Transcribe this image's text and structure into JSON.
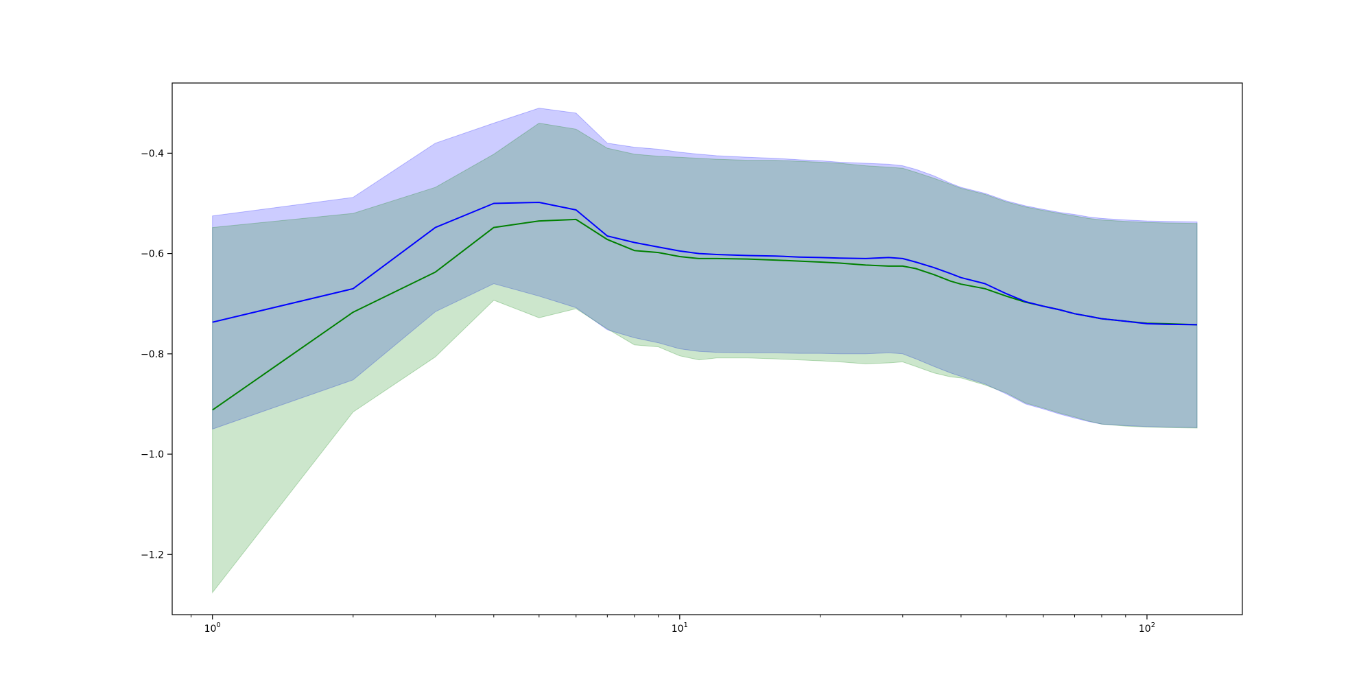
{
  "chart_data": {
    "type": "line",
    "title": "",
    "xlabel": "",
    "ylabel": "",
    "xscale": "log",
    "xlim": [
      0.82,
      160
    ],
    "ylim": [
      -1.32,
      -0.26
    ],
    "grid": false,
    "legend": "none",
    "x_ticks": [
      {
        "value": 1,
        "base": "10",
        "exp": "0"
      },
      {
        "value": 10,
        "base": "10",
        "exp": "1"
      },
      {
        "value": 100,
        "base": "10",
        "exp": "2"
      }
    ],
    "y_ticks": [
      {
        "value": -0.4,
        "label": "−0.4"
      },
      {
        "value": -0.6,
        "label": "−0.6"
      },
      {
        "value": -0.8,
        "label": "−0.8"
      },
      {
        "value": -1.0,
        "label": "−1.0"
      },
      {
        "value": -1.2,
        "label": "−1.2"
      }
    ],
    "series": [
      {
        "color": "#0000ff",
        "band_color": "#0000ff",
        "band_opacity": 0.2,
        "x": [
          1,
          2,
          3,
          4,
          5,
          6,
          7,
          8,
          9,
          10,
          11,
          12,
          14,
          16,
          18,
          20,
          22,
          25,
          28,
          30,
          32,
          35,
          38,
          40,
          45,
          50,
          55,
          60,
          65,
          70,
          75,
          80,
          90,
          100,
          110,
          128
        ],
        "y": [
          -0.737,
          -0.67,
          -0.548,
          -0.5,
          -0.498,
          -0.513,
          -0.565,
          -0.578,
          -0.587,
          -0.595,
          -0.6,
          -0.602,
          -0.604,
          -0.605,
          -0.607,
          -0.608,
          -0.609,
          -0.61,
          -0.608,
          -0.61,
          -0.617,
          -0.628,
          -0.64,
          -0.648,
          -0.66,
          -0.68,
          -0.696,
          -0.705,
          -0.712,
          -0.72,
          -0.725,
          -0.73,
          -0.735,
          -0.74,
          -0.741,
          -0.742
        ],
        "upper": [
          -0.525,
          -0.488,
          -0.38,
          -0.34,
          -0.31,
          -0.32,
          -0.38,
          -0.388,
          -0.392,
          -0.398,
          -0.402,
          -0.405,
          -0.408,
          -0.41,
          -0.413,
          -0.415,
          -0.418,
          -0.42,
          -0.422,
          -0.425,
          -0.432,
          -0.445,
          -0.46,
          -0.468,
          -0.48,
          -0.495,
          -0.505,
          -0.512,
          -0.518,
          -0.522,
          -0.527,
          -0.53,
          -0.533,
          -0.535,
          -0.536,
          -0.537
        ],
        "lower": [
          -0.95,
          -0.852,
          -0.716,
          -0.66,
          -0.685,
          -0.708,
          -0.752,
          -0.768,
          -0.778,
          -0.79,
          -0.795,
          -0.797,
          -0.798,
          -0.798,
          -0.799,
          -0.799,
          -0.8,
          -0.8,
          -0.798,
          -0.8,
          -0.81,
          -0.825,
          -0.838,
          -0.845,
          -0.86,
          -0.88,
          -0.9,
          -0.91,
          -0.92,
          -0.928,
          -0.935,
          -0.94,
          -0.943,
          -0.945,
          -0.946,
          -0.947
        ]
      },
      {
        "color": "#008000",
        "band_color": "#008000",
        "band_opacity": 0.2,
        "x": [
          1,
          2,
          3,
          4,
          5,
          6,
          7,
          8,
          9,
          10,
          11,
          12,
          14,
          16,
          18,
          20,
          22,
          25,
          28,
          30,
          32,
          35,
          38,
          40,
          45,
          50,
          55,
          60,
          65,
          70,
          75,
          80,
          90,
          100,
          110,
          128
        ],
        "y": [
          -0.912,
          -0.717,
          -0.637,
          -0.548,
          -0.535,
          -0.532,
          -0.572,
          -0.594,
          -0.598,
          -0.606,
          -0.61,
          -0.61,
          -0.611,
          -0.613,
          -0.615,
          -0.617,
          -0.619,
          -0.623,
          -0.625,
          -0.625,
          -0.63,
          -0.642,
          -0.655,
          -0.661,
          -0.67,
          -0.685,
          -0.697,
          -0.705,
          -0.712,
          -0.72,
          -0.725,
          -0.73,
          -0.735,
          -0.739,
          -0.74,
          -0.742
        ],
        "upper": [
          -0.548,
          -0.52,
          -0.468,
          -0.402,
          -0.34,
          -0.352,
          -0.39,
          -0.402,
          -0.406,
          -0.408,
          -0.41,
          -0.412,
          -0.414,
          -0.414,
          -0.416,
          -0.418,
          -0.42,
          -0.425,
          -0.428,
          -0.43,
          -0.438,
          -0.45,
          -0.462,
          -0.47,
          -0.482,
          -0.497,
          -0.507,
          -0.514,
          -0.52,
          -0.525,
          -0.53,
          -0.533,
          -0.536,
          -0.538,
          -0.539,
          -0.54
        ],
        "lower": [
          -1.276,
          -0.916,
          -0.806,
          -0.693,
          -0.728,
          -0.71,
          -0.75,
          -0.782,
          -0.786,
          -0.804,
          -0.812,
          -0.808,
          -0.808,
          -0.81,
          -0.812,
          -0.814,
          -0.816,
          -0.82,
          -0.818,
          -0.816,
          -0.825,
          -0.838,
          -0.846,
          -0.848,
          -0.862,
          -0.878,
          -0.898,
          -0.908,
          -0.918,
          -0.926,
          -0.934,
          -0.94,
          -0.944,
          -0.946,
          -0.947,
          -0.948
        ]
      }
    ]
  }
}
